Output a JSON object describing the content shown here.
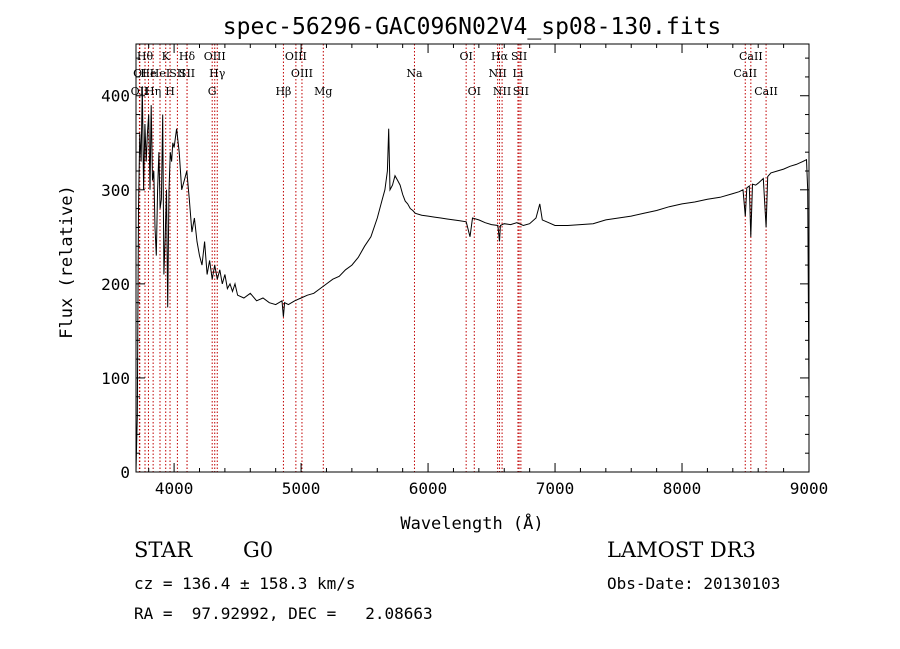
{
  "chart_data": {
    "type": "line",
    "title": "spec-56296-GAC096N02V4_sp08-130.fits",
    "xlabel": "Wavelength (Å)",
    "ylabel": "Flux (relative)",
    "xlim": [
      3700,
      9000
    ],
    "ylim": [
      0,
      455
    ],
    "x_ticks": [
      4000,
      5000,
      6000,
      7000,
      8000,
      9000
    ],
    "y_ticks": [
      0,
      100,
      200,
      300,
      400
    ],
    "grid": false,
    "series": [
      {
        "x": [
          3700,
          3710,
          3720,
          3730,
          3740,
          3750,
          3760,
          3770,
          3780,
          3790,
          3800,
          3810,
          3820,
          3830,
          3840,
          3850,
          3860,
          3870,
          3880,
          3890,
          3900,
          3910,
          3920,
          3930,
          3940,
          3950,
          3960,
          3970,
          3980,
          3990,
          4000,
          4020,
          4040,
          4060,
          4080,
          4100,
          4120,
          4140,
          4160,
          4180,
          4200,
          4220,
          4240,
          4260,
          4280,
          4300,
          4320,
          4340,
          4360,
          4380,
          4400,
          4420,
          4440,
          4460,
          4480,
          4500,
          4550,
          4600,
          4650,
          4700,
          4750,
          4800,
          4850,
          4861,
          4870,
          4900,
          4950,
          5000,
          5050,
          5100,
          5150,
          5200,
          5250,
          5300,
          5350,
          5400,
          5450,
          5500,
          5550,
          5600,
          5640,
          5660,
          5680,
          5690,
          5700,
          5720,
          5740,
          5760,
          5780,
          5800,
          5820,
          5840,
          5860,
          5880,
          5900,
          5950,
          6000,
          6050,
          6100,
          6150,
          6200,
          6250,
          6300,
          6330,
          6350,
          6400,
          6450,
          6500,
          6550,
          6563,
          6570,
          6600,
          6650,
          6700,
          6750,
          6800,
          6850,
          6880,
          6900,
          6950,
          7000,
          7100,
          7200,
          7300,
          7400,
          7500,
          7600,
          7700,
          7800,
          7900,
          8000,
          8100,
          8200,
          8300,
          8400,
          8450,
          8480,
          8498,
          8510,
          8530,
          8542,
          8555,
          8580,
          8600,
          8640,
          8662,
          8675,
          8700,
          8750,
          8800,
          8850,
          8900,
          8950,
          8980,
          8990,
          9000
        ],
        "values": [
          0,
          60,
          280,
          360,
          330,
          410,
          300,
          370,
          330,
          360,
          380,
          300,
          390,
          310,
          320,
          260,
          230,
          300,
          340,
          280,
          290,
          380,
          210,
          250,
          300,
          175,
          300,
          340,
          330,
          350,
          345,
          365,
          340,
          300,
          310,
          320,
          290,
          255,
          270,
          245,
          230,
          220,
          245,
          210,
          225,
          205,
          220,
          205,
          215,
          200,
          210,
          195,
          200,
          192,
          200,
          188,
          185,
          190,
          182,
          185,
          180,
          178,
          182,
          165,
          180,
          178,
          182,
          185,
          188,
          190,
          195,
          200,
          205,
          208,
          215,
          220,
          228,
          240,
          250,
          270,
          290,
          300,
          320,
          365,
          300,
          305,
          315,
          310,
          305,
          295,
          288,
          285,
          280,
          278,
          275,
          273,
          272,
          271,
          270,
          269,
          268,
          267,
          266,
          250,
          270,
          268,
          265,
          263,
          262,
          245,
          262,
          264,
          263,
          265,
          262,
          264,
          270,
          285,
          268,
          265,
          262,
          262,
          263,
          264,
          268,
          270,
          272,
          275,
          278,
          282,
          285,
          287,
          290,
          292,
          296,
          298,
          300,
          272,
          302,
          304,
          250,
          306,
          305,
          307,
          312,
          260,
          314,
          318,
          320,
          322,
          325,
          327,
          330,
          332,
          300,
          75
        ]
      }
    ],
    "annotations": [
      {
        "x": 3727,
        "row": 3,
        "label": "OII"
      },
      {
        "x": 3730,
        "row": 2,
        "label": "OI"
      },
      {
        "x": 3771,
        "row": 1,
        "label": "Hθ"
      },
      {
        "x": 3798,
        "row": 2,
        "label": "He"
      },
      {
        "x": 3835,
        "row": 3,
        "label": "Hη"
      },
      {
        "x": 3889,
        "row": 2,
        "label": "HeI"
      },
      {
        "x": 3934,
        "row": 1,
        "label": "K"
      },
      {
        "x": 3968,
        "row": 3,
        "label": "H"
      },
      {
        "x": 4026,
        "row": 2,
        "label": "SII"
      },
      {
        "x": 4102,
        "row": 1,
        "label": "Hδ"
      },
      {
        "x": 4102,
        "row": 2,
        "label": "SII"
      },
      {
        "x": 4300,
        "row": 3,
        "label": "G"
      },
      {
        "x": 4320,
        "row": 1,
        "label": "OIII"
      },
      {
        "x": 4340,
        "row": 2,
        "label": "Hγ"
      },
      {
        "x": 4861,
        "row": 3,
        "label": "Hβ"
      },
      {
        "x": 4959,
        "row": 1,
        "label": "OIII"
      },
      {
        "x": 5007,
        "row": 2,
        "label": "OIII"
      },
      {
        "x": 5175,
        "row": 3,
        "label": "Mg"
      },
      {
        "x": 5893,
        "row": 2,
        "label": "Na"
      },
      {
        "x": 6300,
        "row": 1,
        "label": "OI"
      },
      {
        "x": 6364,
        "row": 3,
        "label": "OI"
      },
      {
        "x": 6548,
        "row": 2,
        "label": "NII"
      },
      {
        "x": 6563,
        "row": 1,
        "label": "Hα"
      },
      {
        "x": 6583,
        "row": 3,
        "label": "NII"
      },
      {
        "x": 6708,
        "row": 2,
        "label": "Li"
      },
      {
        "x": 6717,
        "row": 1,
        "label": "SII"
      },
      {
        "x": 6731,
        "row": 3,
        "label": "SII"
      },
      {
        "x": 8498,
        "row": 2,
        "label": "CaII"
      },
      {
        "x": 8542,
        "row": 1,
        "label": "CaII"
      },
      {
        "x": 8662,
        "row": 3,
        "label": "CaII"
      }
    ]
  },
  "info": {
    "class_label": "STAR",
    "subclass_label": "G0",
    "survey_label": "LAMOST DR3",
    "cz_text": "cz = 136.4 ± 158.3 km/s",
    "obs_date_text": "Obs-Date: 20130103",
    "radec_text": "RA =  97.92992, DEC =   2.08663"
  }
}
